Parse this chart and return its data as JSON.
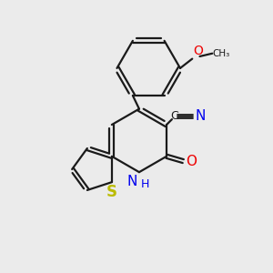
{
  "background_color": "#ebebeb",
  "bond_color": "#1a1a1a",
  "bond_width": 1.6,
  "atom_colors": {
    "N": "#0000ee",
    "O": "#ee0000",
    "S": "#bbbb00",
    "C": "#1a1a1a"
  },
  "xlim": [
    0,
    10
  ],
  "ylim": [
    0,
    10
  ],
  "figsize": [
    3.0,
    3.0
  ],
  "dpi": 100
}
